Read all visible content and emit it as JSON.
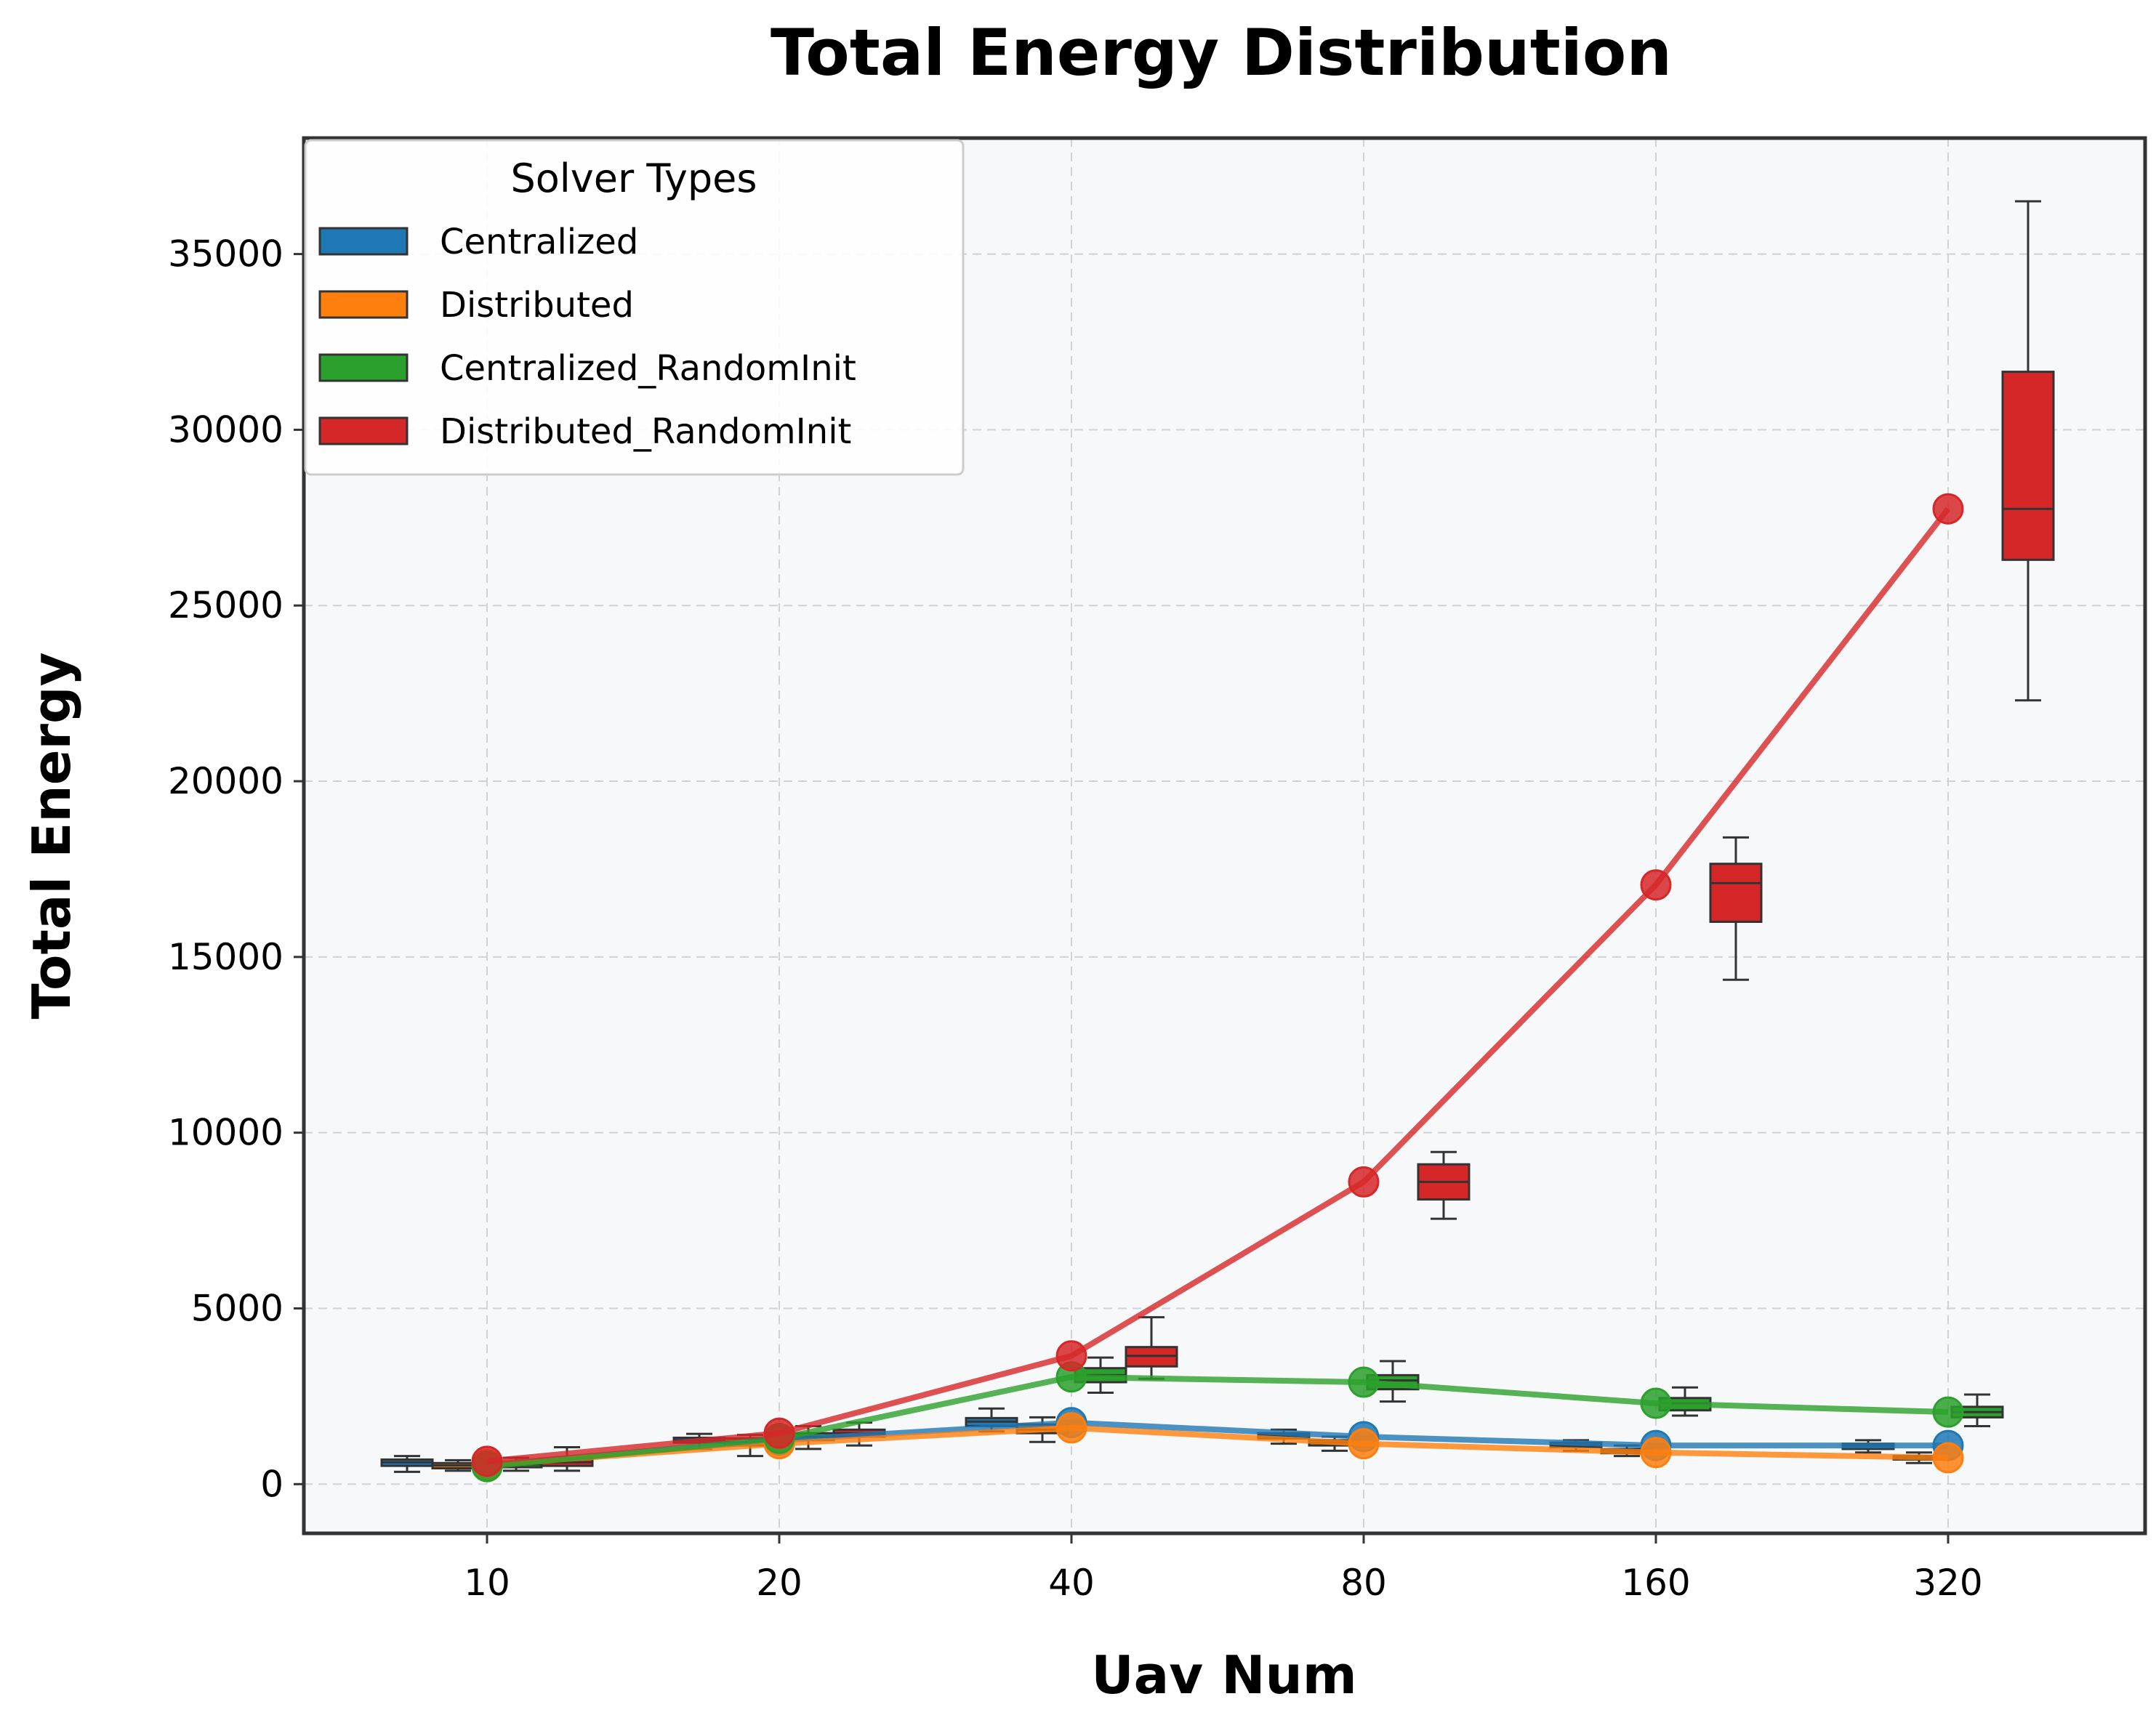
{
  "chart_data": {
    "type": "line",
    "title": "Total Energy Distribution",
    "xlabel": "Uav Num",
    "ylabel": "Total Energy",
    "categories": [
      "10",
      "20",
      "40",
      "80",
      "160",
      "320"
    ],
    "yticks": [
      "0",
      "5000",
      "10000",
      "15000",
      "20000",
      "25000",
      "30000",
      "35000"
    ],
    "ylim": [
      -1400,
      38300
    ],
    "grid": true,
    "legend": {
      "title": "Solver Types",
      "position": "top-left"
    },
    "series": [
      {
        "name": "Centralized",
        "color": "#1f77b4",
        "values": [
          550,
          1250,
          1750,
          1350,
          1100,
          1100
        ],
        "boxes": [
          {
            "min": 350,
            "q1": 520,
            "med": 620,
            "q3": 700,
            "max": 800
          },
          {
            "min": 1000,
            "q1": 1180,
            "med": 1250,
            "q3": 1320,
            "max": 1430
          },
          {
            "min": 1500,
            "q1": 1650,
            "med": 1780,
            "q3": 1880,
            "max": 2150
          },
          {
            "min": 1150,
            "q1": 1300,
            "med": 1380,
            "q3": 1450,
            "max": 1550
          },
          {
            "min": 950,
            "q1": 1050,
            "med": 1100,
            "q3": 1180,
            "max": 1250
          },
          {
            "min": 900,
            "q1": 1000,
            "med": 1080,
            "q3": 1150,
            "max": 1250
          }
        ]
      },
      {
        "name": "Distributed",
        "color": "#ff7f0e",
        "values": [
          550,
          1150,
          1600,
          1150,
          900,
          750
        ],
        "boxes": [
          {
            "min": 380,
            "q1": 450,
            "med": 530,
            "q3": 600,
            "max": 680
          },
          {
            "min": 800,
            "q1": 1100,
            "med": 1200,
            "q3": 1300,
            "max": 1400
          },
          {
            "min": 1200,
            "q1": 1450,
            "med": 1550,
            "q3": 1700,
            "max": 1900
          },
          {
            "min": 950,
            "q1": 1100,
            "med": 1180,
            "q3": 1250,
            "max": 1350
          },
          {
            "min": 800,
            "q1": 880,
            "med": 950,
            "q3": 1000,
            "max": 1100
          },
          {
            "min": 600,
            "q1": 700,
            "med": 750,
            "q3": 800,
            "max": 900
          }
        ]
      },
      {
        "name": "Centralized_RandomInit",
        "color": "#2ca02c",
        "values": [
          500,
          1300,
          3050,
          2900,
          2300,
          2050
        ],
        "boxes": [
          {
            "min": 380,
            "q1": 480,
            "med": 560,
            "q3": 640,
            "max": 750
          },
          {
            "min": 1000,
            "q1": 1250,
            "med": 1350,
            "q3": 1450,
            "max": 1650
          },
          {
            "min": 2600,
            "q1": 2900,
            "med": 3100,
            "q3": 3300,
            "max": 3600
          },
          {
            "min": 2350,
            "q1": 2700,
            "med": 2950,
            "q3": 3100,
            "max": 3500
          },
          {
            "min": 1950,
            "q1": 2100,
            "med": 2300,
            "q3": 2450,
            "max": 2750
          },
          {
            "min": 1650,
            "q1": 1900,
            "med": 2050,
            "q3": 2200,
            "max": 2550
          }
        ]
      },
      {
        "name": "Distributed_RandomInit",
        "color": "#d62728",
        "values": [
          650,
          1450,
          3650,
          8600,
          17050,
          27750
        ],
        "boxes": [
          {
            "min": 380,
            "q1": 520,
            "med": 620,
            "q3": 720,
            "max": 1050
          },
          {
            "min": 1100,
            "q1": 1350,
            "med": 1450,
            "q3": 1550,
            "max": 1750
          },
          {
            "min": 3000,
            "q1": 3350,
            "med": 3650,
            "q3": 3900,
            "max": 4750
          },
          {
            "min": 7550,
            "q1": 8100,
            "med": 8600,
            "q3": 9100,
            "max": 9450
          },
          {
            "min": 14350,
            "q1": 16000,
            "med": 17100,
            "q3": 17650,
            "max": 18400
          },
          {
            "min": 22300,
            "q1": 26300,
            "med": 27750,
            "q3": 31650,
            "max": 36500
          }
        ]
      }
    ]
  }
}
